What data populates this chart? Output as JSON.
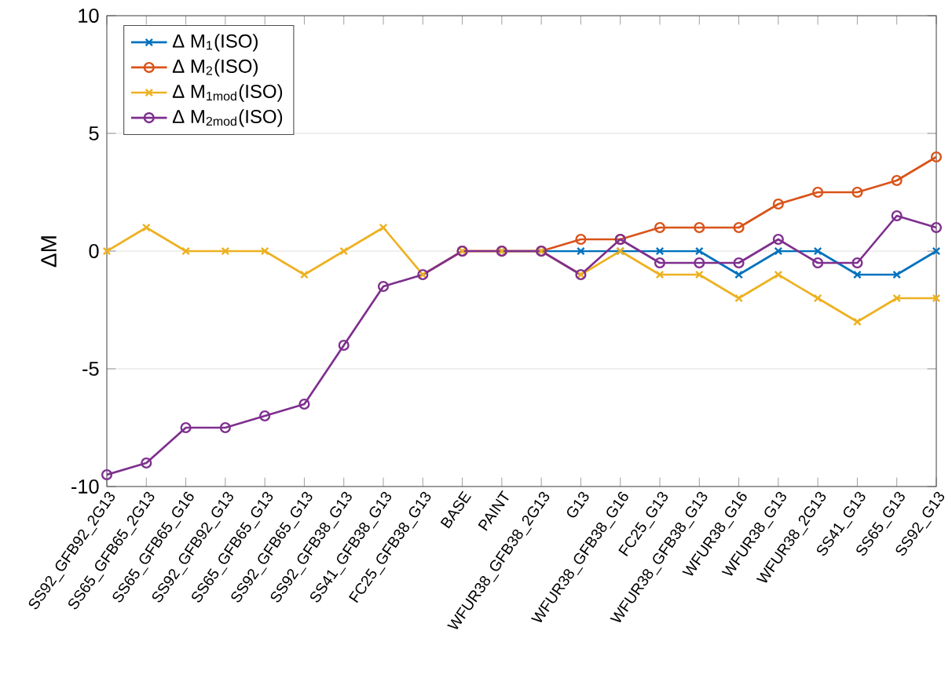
{
  "chart_data": {
    "type": "line",
    "ylabel": "ΔM",
    "categories": [
      "SS92_GFB92_2G13",
      "SS65_GFB65_2G13",
      "SS65_GFB65_G16",
      "SS92_GFB92_G13",
      "SS65_GFB65_G13",
      "SS92_GFB65_G13",
      "SS92_GFB38_G13",
      "SS41_GFB38_G13",
      "FC25_GFB38_G13",
      "BASE",
      "PAINT",
      "WFUR38_GFB38_2G13",
      "G13",
      "WFUR38_GFB38_G16",
      "FC25_G13",
      "WFUR38_GFB38_G13",
      "WFUR38_G16",
      "WFUR38_G13",
      "WFUR38_2G13",
      "SS41_G13",
      "SS65_G13",
      "SS92_G13"
    ],
    "series": [
      {
        "name": "Δ M$_{1}$(ISO)",
        "color": "#0072bd",
        "marker": "cross",
        "values": [
          null,
          null,
          null,
          null,
          null,
          null,
          null,
          null,
          null,
          null,
          0,
          0,
          0,
          0,
          0,
          0,
          -1,
          0,
          0,
          -1,
          -1,
          0
        ]
      },
      {
        "name": "Δ M$_{2}$(ISO)",
        "color": "#d95319",
        "marker": "circle",
        "values": [
          null,
          null,
          null,
          null,
          null,
          null,
          null,
          null,
          null,
          0,
          0,
          0,
          0.5,
          0.5,
          1,
          1,
          1,
          2,
          2.5,
          2.5,
          3,
          4
        ]
      },
      {
        "name": "Δ M$_{1mod}$(ISO)",
        "color": "#edb120",
        "marker": "cross",
        "values": [
          0,
          1,
          0,
          0,
          0,
          -1,
          0,
          1,
          -1,
          0,
          0,
          0,
          -1,
          0,
          -1,
          -1,
          -2,
          -1,
          -2,
          -3,
          -2,
          -2
        ]
      },
      {
        "name": "Δ M$_{2mod}$(ISO)",
        "color": "#7e2f8e",
        "marker": "circle",
        "values": [
          -9.5,
          -9,
          -7.5,
          -7.5,
          -7,
          -6.5,
          -4,
          -1.5,
          -1,
          0,
          0,
          0,
          -1,
          0.5,
          -0.5,
          -0.5,
          -0.5,
          0.5,
          -0.5,
          -0.5,
          1.5,
          1
        ]
      }
    ],
    "ylim": [
      -10,
      10
    ],
    "yticks": [
      -10,
      -5,
      0,
      5,
      10
    ],
    "grid": "y",
    "legend": "top left",
    "line_style": "solid"
  }
}
